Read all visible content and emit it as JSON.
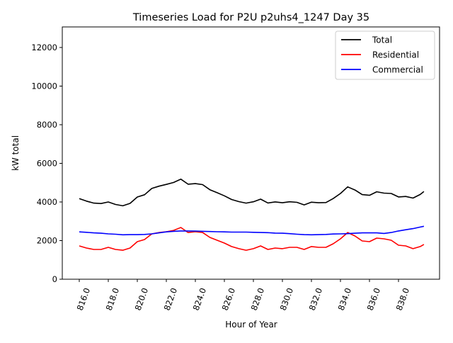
{
  "chart_data": {
    "type": "line",
    "title": "Timeseries Load for P2U p2uhs4_1247  Day 35",
    "xlabel": "Hour of Year",
    "ylabel": "kW total",
    "xlim": [
      814.83,
      840.83
    ],
    "ylim": [
      0,
      13064
    ],
    "grid": false,
    "legend_position": "top-right",
    "x_ticks": [
      816,
      818,
      820,
      822,
      824,
      826,
      828,
      830,
      832,
      834,
      836,
      838
    ],
    "x_tick_labels": [
      "816.0",
      "818.0",
      "820.0",
      "822.0",
      "824.0",
      "826.0",
      "828.0",
      "830.0",
      "832.0",
      "834.0",
      "836.0",
      "838.0"
    ],
    "y_ticks": [
      0,
      2000,
      4000,
      6000,
      8000,
      10000,
      12000
    ],
    "y_tick_labels": [
      "0",
      "2000",
      "4000",
      "6000",
      "8000",
      "10000",
      "12000"
    ],
    "x": [
      816,
      816.5,
      817,
      817.5,
      818,
      818.5,
      819,
      819.5,
      820,
      820.5,
      821,
      821.5,
      822,
      822.5,
      823,
      823.5,
      824,
      824.5,
      825,
      825.5,
      826,
      826.5,
      827,
      827.5,
      828,
      828.5,
      829,
      829.5,
      830,
      830.5,
      831,
      831.5,
      832,
      832.5,
      833,
      833.5,
      834,
      834.5,
      835,
      835.5,
      836,
      836.5,
      837,
      837.5,
      838,
      838.5,
      839,
      839.5,
      839.75
    ],
    "series": [
      {
        "name": "Total",
        "color": "#000000",
        "values": [
          4175,
          4045,
          3940,
          3920,
          4000,
          3870,
          3800,
          3925,
          4255,
          4375,
          4700,
          4820,
          4910,
          5010,
          5180,
          4920,
          4950,
          4900,
          4635,
          4480,
          4320,
          4130,
          4020,
          3940,
          4010,
          4145,
          3950,
          4005,
          3960,
          4010,
          3980,
          3850,
          3990,
          3960,
          3970,
          4175,
          4440,
          4780,
          4620,
          4380,
          4345,
          4530,
          4460,
          4440,
          4260,
          4285,
          4200,
          4390,
          4540
        ]
      },
      {
        "name": "Residential",
        "color": "#ff0000",
        "values": [
          1725,
          1615,
          1540,
          1540,
          1650,
          1540,
          1500,
          1615,
          1945,
          2055,
          2350,
          2420,
          2460,
          2530,
          2680,
          2420,
          2460,
          2420,
          2165,
          2020,
          1870,
          1690,
          1580,
          1500,
          1580,
          1725,
          1540,
          1615,
          1580,
          1650,
          1650,
          1540,
          1690,
          1650,
          1650,
          1835,
          2090,
          2420,
          2240,
          1980,
          1945,
          2130,
          2090,
          2020,
          1760,
          1725,
          1580,
          1690,
          1800
        ]
      },
      {
        "name": "Commercial",
        "color": "#0000ff",
        "values": [
          2450,
          2430,
          2400,
          2380,
          2350,
          2330,
          2300,
          2310,
          2310,
          2320,
          2350,
          2400,
          2450,
          2480,
          2500,
          2500,
          2490,
          2480,
          2470,
          2460,
          2450,
          2440,
          2440,
          2440,
          2430,
          2420,
          2410,
          2390,
          2380,
          2360,
          2330,
          2310,
          2300,
          2310,
          2320,
          2340,
          2350,
          2360,
          2380,
          2400,
          2400,
          2400,
          2370,
          2420,
          2500,
          2560,
          2620,
          2700,
          2740
        ]
      }
    ]
  }
}
